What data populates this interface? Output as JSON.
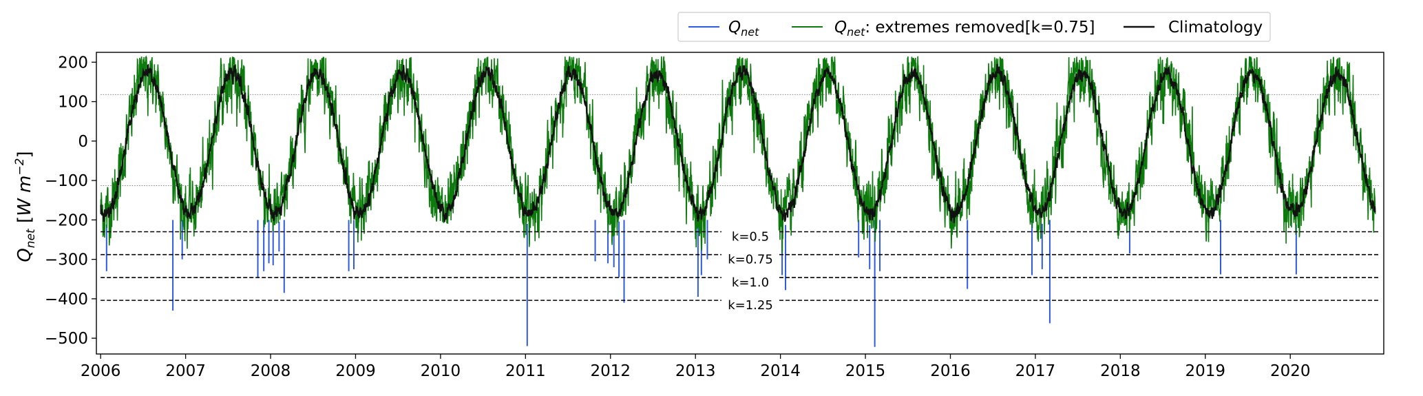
{
  "chart_data": {
    "type": "line",
    "ylabel": {
      "main": "Q",
      "sub": "net",
      "unit_open": " [",
      "unit_W": "W m",
      "unit_exp": "−2",
      "unit_close": "]"
    },
    "ylim": [
      -540,
      225
    ],
    "yticks": [
      200,
      100,
      0,
      -100,
      -200,
      -300,
      -400,
      -500
    ],
    "ytick_labels": [
      "200",
      "100",
      "0",
      "−100",
      "−200",
      "−300",
      "−400",
      "−500"
    ],
    "xlim": [
      2005.95,
      2021.1
    ],
    "xticks": [
      2006,
      2007,
      2008,
      2009,
      2010,
      2011,
      2012,
      2013,
      2014,
      2015,
      2016,
      2017,
      2018,
      2019,
      2020
    ],
    "xtick_labels": [
      "2006",
      "2007",
      "2008",
      "2009",
      "2010",
      "2011",
      "2012",
      "2013",
      "2014",
      "2015",
      "2016",
      "2017",
      "2018",
      "2019",
      "2020"
    ],
    "grid": false,
    "legend_position": "top-right, above plot",
    "legend": [
      {
        "id": "qnet",
        "main": "Q",
        "sub": "net",
        "rest": "",
        "color": "#2d5ae0"
      },
      {
        "id": "qnet-removed",
        "main": "Q",
        "sub": "net",
        "rest": ": extremes removed[k=0.75]",
        "color": "#0c7a0c"
      },
      {
        "id": "climatology",
        "main": "",
        "sub": "",
        "rest": "Climatology",
        "color": "#111111"
      }
    ],
    "climatology": {
      "mean": -5,
      "amplitude": 178,
      "peak_phase_year_fraction": 0.55
    },
    "reference_lines": [
      {
        "label": "",
        "y": 118,
        "style": "dotted"
      },
      {
        "label": "",
        "y": -113,
        "style": "dotted"
      }
    ],
    "threshold_lines": [
      {
        "label": "k=0.5",
        "y": -230
      },
      {
        "label": "k=0.75",
        "y": -288
      },
      {
        "label": "k=1.0",
        "y": -346
      },
      {
        "label": "k=1.25",
        "y": -404
      }
    ],
    "extreme_events": [
      {
        "x": 2006.07,
        "y": -330
      },
      {
        "x": 2006.85,
        "y": -430
      },
      {
        "x": 2006.96,
        "y": -300
      },
      {
        "x": 2007.85,
        "y": -345
      },
      {
        "x": 2007.92,
        "y": -330
      },
      {
        "x": 2007.98,
        "y": -310
      },
      {
        "x": 2008.03,
        "y": -315
      },
      {
        "x": 2008.1,
        "y": -280
      },
      {
        "x": 2008.16,
        "y": -385
      },
      {
        "x": 2008.92,
        "y": -330
      },
      {
        "x": 2008.98,
        "y": -325
      },
      {
        "x": 2011.02,
        "y": -520
      },
      {
        "x": 2011.82,
        "y": -305
      },
      {
        "x": 2011.97,
        "y": -310
      },
      {
        "x": 2012.04,
        "y": -320
      },
      {
        "x": 2012.1,
        "y": -345
      },
      {
        "x": 2012.16,
        "y": -410
      },
      {
        "x": 2013.03,
        "y": -395
      },
      {
        "x": 2013.07,
        "y": -340
      },
      {
        "x": 2013.14,
        "y": -300
      },
      {
        "x": 2014.02,
        "y": -340
      },
      {
        "x": 2014.06,
        "y": -378
      },
      {
        "x": 2014.92,
        "y": -295
      },
      {
        "x": 2015.05,
        "y": -325
      },
      {
        "x": 2015.11,
        "y": -522
      },
      {
        "x": 2015.17,
        "y": -330
      },
      {
        "x": 2016.2,
        "y": -375
      },
      {
        "x": 2016.96,
        "y": -340
      },
      {
        "x": 2017.08,
        "y": -325
      },
      {
        "x": 2017.17,
        "y": -462
      },
      {
        "x": 2018.11,
        "y": -285
      },
      {
        "x": 2019.18,
        "y": -338
      },
      {
        "x": 2020.07,
        "y": -338
      }
    ]
  }
}
